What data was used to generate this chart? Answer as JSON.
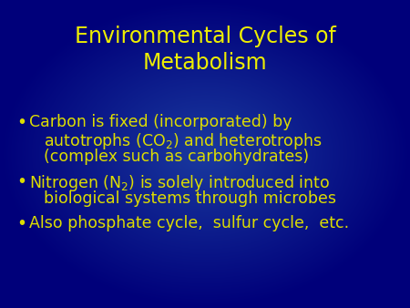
{
  "title_line1": "Environmental Cycles of",
  "title_line2": "Metabolism",
  "title_color": "#EEEE00",
  "background_color_center": "#1a3a9f",
  "background_color_edge": "#00008B",
  "text_color": "#DDDD00",
  "bullet_color": "#DDDD00",
  "title_fontsize": 17,
  "body_fontsize": 12.5,
  "bullet1_line1": "Carbon is fixed (incorporated) by",
  "bullet1_line2_pre": "autotrophs (CO",
  "bullet1_sub1": "2",
  "bullet1_line2_post": ") and heterotrophs",
  "bullet1_line3": "(complex such as carbohydrates)",
  "bullet2_line1_pre": "Nitrogen (N",
  "bullet2_sub1": "2",
  "bullet2_line1_post": ") is solely introduced into",
  "bullet2_line2": "biological systems through microbes",
  "bullet3_line1": "Also phosphate cycle,  sulfur cycle,  etc."
}
